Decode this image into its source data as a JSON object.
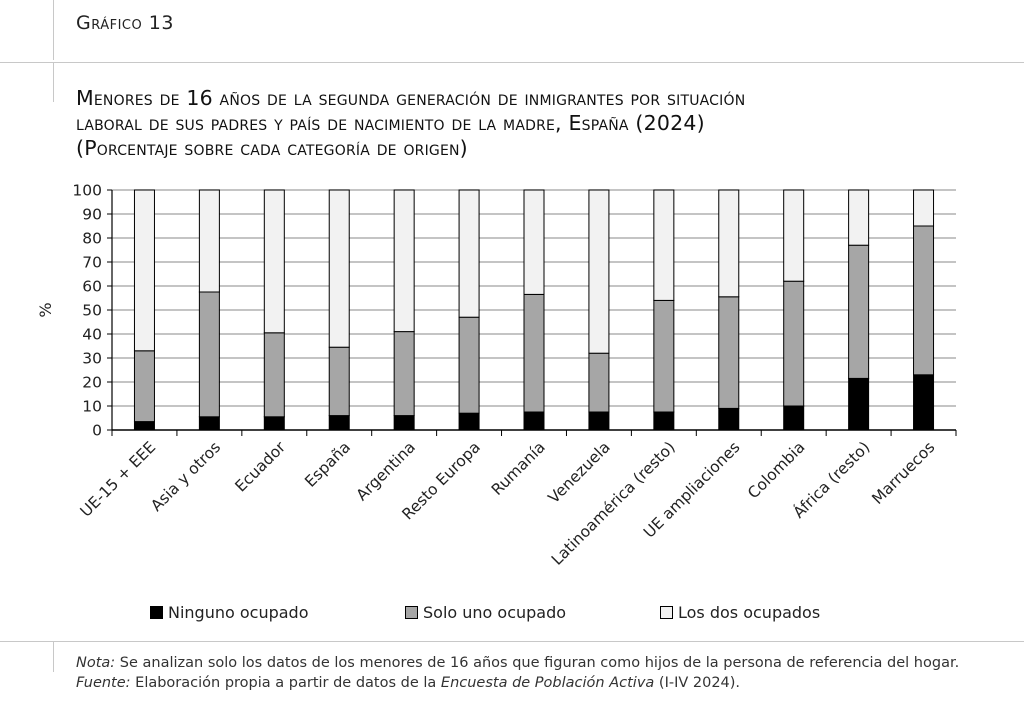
{
  "figure": {
    "label": "Gráfico 13",
    "title_line1": "Menores de 16 años de la segunda generación de inmigrantes por situación",
    "title_line2": "laboral de sus padres y país de nacimiento de la madre, España (2024)",
    "title_line3": "(Porcentaje sobre cada categoría de origen)"
  },
  "notes": {
    "nota_label": "Nota:",
    "nota_text": " Se analizan solo los datos de los menores de 16 años que figuran como hijos de la persona de referencia del hogar.",
    "fuente_label": "Fuente:",
    "fuente_text_pre": " Elaboración propia a partir de datos de la ",
    "fuente_source": "Encuesta de Población Activa",
    "fuente_text_post": " (I-IV 2024)."
  },
  "chart_data": {
    "type": "bar",
    "stacked": true,
    "ylabel": "%",
    "ylim": [
      0,
      100
    ],
    "yticks": [
      0,
      10,
      20,
      30,
      40,
      50,
      60,
      70,
      80,
      90,
      100
    ],
    "grid": true,
    "legend_position": "bottom",
    "categories": [
      "UE-15 + EEE",
      "Asia y otros",
      "Ecuador",
      "España",
      "Argentina",
      "Resto Europa",
      "Rumanía",
      "Venezuela",
      "Latinoamérica (resto)",
      "UE ampliaciones",
      "Colombia",
      "África (resto)",
      "Marruecos"
    ],
    "series": [
      {
        "name": "Ninguno ocupado",
        "color": "#000000",
        "values": [
          3.5,
          5.5,
          5.5,
          6,
          6,
          7,
          7.5,
          7.5,
          7.5,
          9,
          10,
          21.5,
          23
        ]
      },
      {
        "name": "Solo uno ocupado",
        "color": "#a6a6a6",
        "values": [
          29.5,
          52,
          35,
          28.5,
          35,
          40,
          49,
          24.5,
          46.5,
          46.5,
          52,
          55.5,
          62
        ]
      },
      {
        "name": "Los dos ocupados",
        "color": "#f2f2f2",
        "values": [
          67,
          42.5,
          59.5,
          65.5,
          59,
          53,
          43.5,
          68,
          46,
          44.5,
          38,
          23,
          15
        ]
      }
    ]
  }
}
